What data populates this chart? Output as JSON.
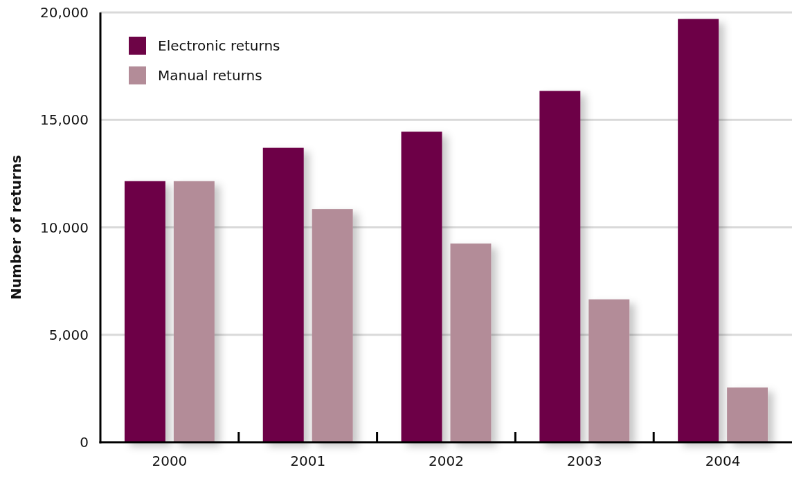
{
  "chart_data": {
    "type": "bar",
    "ylabel": "Number of returns",
    "categories": [
      "2000",
      "2001",
      "2002",
      "2003",
      "2004"
    ],
    "series": [
      {
        "name": "Electronic returns",
        "color": "#6d0446",
        "values": [
          12150,
          13700,
          14450,
          16350,
          19700
        ]
      },
      {
        "name": "Manual returns",
        "color": "#b38c98",
        "values": [
          12150,
          10850,
          9250,
          6650,
          2550
        ]
      }
    ],
    "ylim": [
      0,
      20000
    ],
    "yticks": [
      {
        "value": 0,
        "label": "0"
      },
      {
        "value": 5000,
        "label": "5,000"
      },
      {
        "value": 10000,
        "label": "10,000"
      },
      {
        "value": 15000,
        "label": "15,000"
      },
      {
        "value": 20000,
        "label": "20,000"
      }
    ],
    "grid": "y",
    "legend": "top left"
  }
}
